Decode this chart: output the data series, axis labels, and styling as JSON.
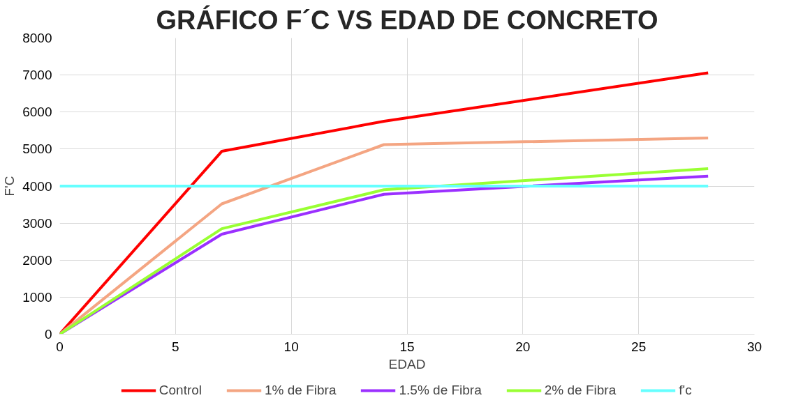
{
  "chart_data": {
    "type": "line",
    "title": "GRÁFICO F´C VS EDAD DE CONCRETO",
    "xlabel": "EDAD",
    "ylabel": "F'C",
    "x": [
      0,
      7,
      14,
      28
    ],
    "series": [
      {
        "name": "Control",
        "color": "#ff0000",
        "values": [
          0,
          4940,
          5750,
          7060
        ]
      },
      {
        "name": "1% de Fibra",
        "color": "#f4a582",
        "values": [
          0,
          3520,
          5120,
          5300
        ]
      },
      {
        "name": "1.5% de Fibra",
        "color": "#9b30ff",
        "values": [
          0,
          2700,
          3780,
          4270
        ]
      },
      {
        "name": "2% de Fibra",
        "color": "#99ff33",
        "values": [
          0,
          2850,
          3900,
          4470
        ]
      },
      {
        "name": "f'c",
        "color": "#66ffff",
        "x": [
          0,
          28
        ],
        "values": [
          4000,
          4000
        ]
      }
    ],
    "xlim": [
      0,
      30
    ],
    "xticks": [
      0,
      5,
      10,
      15,
      20,
      25,
      30
    ],
    "ylim": [
      0,
      8000
    ],
    "yticks": [
      0,
      1000,
      2000,
      3000,
      4000,
      5000,
      6000,
      7000,
      8000
    ],
    "grid": true,
    "legend": "bottom",
    "marker": "none",
    "line_style": "solid"
  }
}
